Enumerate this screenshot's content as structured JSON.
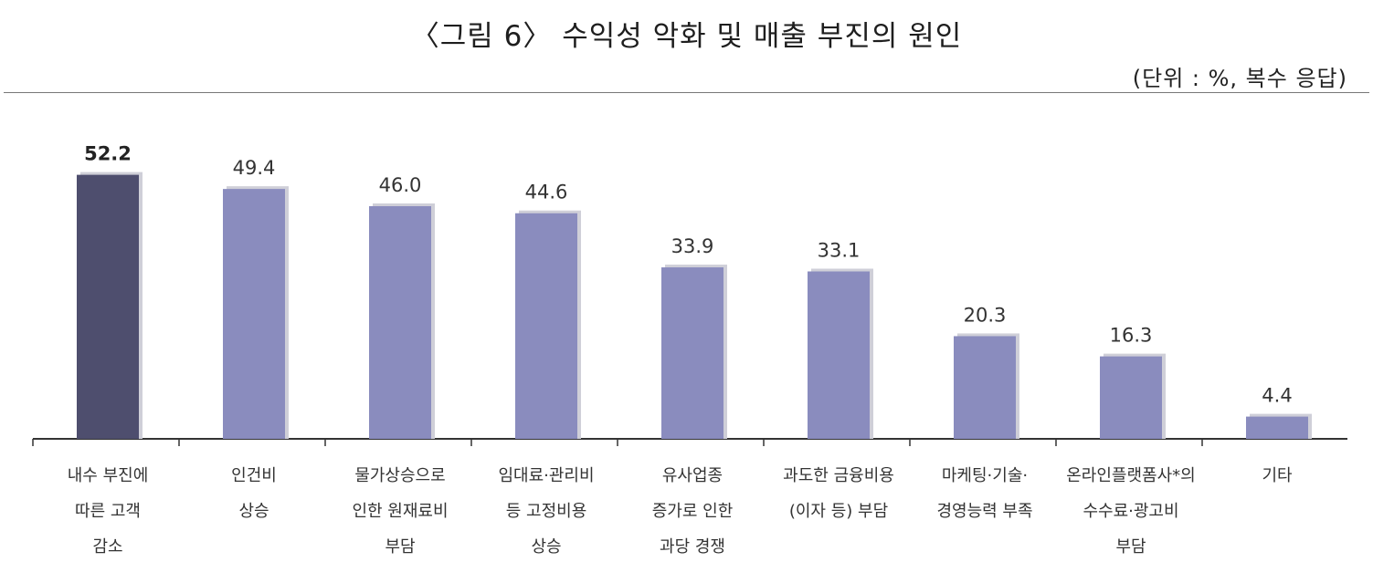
{
  "chart_data": {
    "type": "bar",
    "title": "〈그림 6〉 수익성 악화 및 매출 부진의 원인",
    "unit_note": "(단위 : %, 복수 응답)",
    "categories": [
      [
        "내수 부진에",
        "따른 고객",
        "감소"
      ],
      [
        "인건비",
        "상승"
      ],
      [
        "물가상승으로",
        "인한 원재료비",
        "부담"
      ],
      [
        "임대료·관리비",
        "등 고정비용",
        "상승"
      ],
      [
        "유사업종",
        "증가로 인한",
        "과당 경쟁"
      ],
      [
        "과도한 금융비용",
        "(이자 등) 부담"
      ],
      [
        "마케팅·기술·",
        "경영능력 부족"
      ],
      [
        "온라인플랫폼사*의",
        "수수료·광고비",
        "부담"
      ],
      [
        "기타"
      ]
    ],
    "values": [
      52.2,
      49.4,
      46.0,
      44.6,
      33.9,
      33.1,
      20.3,
      16.3,
      4.4
    ],
    "value_labels": [
      "52.2",
      "49.4",
      "46.0",
      "44.6",
      "33.9",
      "33.1",
      "20.3",
      "16.3",
      "4.4"
    ],
    "highlight_index": 0,
    "ylim": [
      0,
      57
    ],
    "colors": {
      "highlight": "#4e4e6e",
      "bar": "#8a8cbe",
      "shadow": "#cfcfd8",
      "axis": "#333333"
    }
  }
}
